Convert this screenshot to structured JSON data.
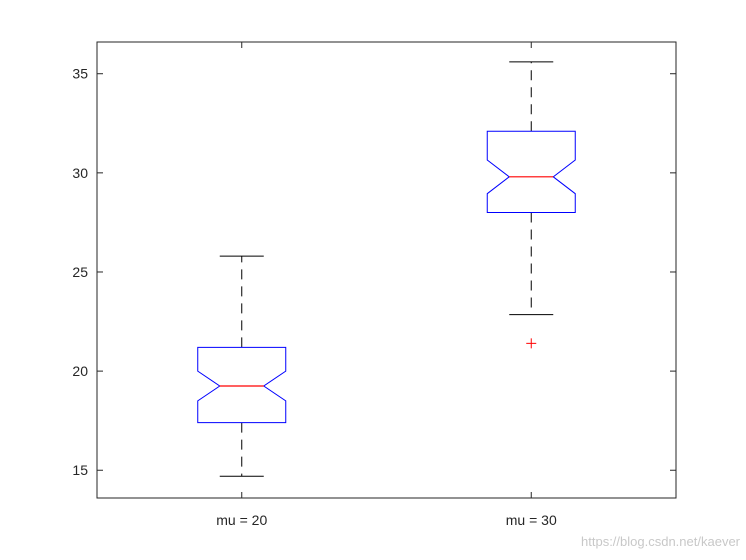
{
  "chart_data": {
    "type": "boxplot",
    "notched": true,
    "categories": [
      "mu = 20",
      "mu = 30"
    ],
    "boxes": [
      {
        "label": "mu = 20",
        "whisker_low": 14.7,
        "q1": 17.4,
        "median": 19.25,
        "q3": 21.2,
        "whisker_high": 25.8,
        "notch_low": 18.5,
        "notch_high": 20.0,
        "outliers": []
      },
      {
        "label": "mu = 30",
        "whisker_low": 22.85,
        "q1": 28.0,
        "median": 29.8,
        "q3": 32.1,
        "whisker_high": 35.6,
        "notch_low": 28.95,
        "notch_high": 30.65,
        "outliers": [
          21.4
        ]
      }
    ],
    "ylim": [
      13.6,
      36.6
    ],
    "yticks": [
      15,
      20,
      25,
      30,
      35
    ],
    "title": "",
    "xlabel": "",
    "ylabel": "",
    "grid": false,
    "colors": {
      "box": "#0000ff",
      "median": "#ff0000",
      "whisker": "#000000",
      "outlier": "#ff0000",
      "axis": "#262626"
    }
  },
  "watermark": "https://blog.csdn.net/kaever"
}
